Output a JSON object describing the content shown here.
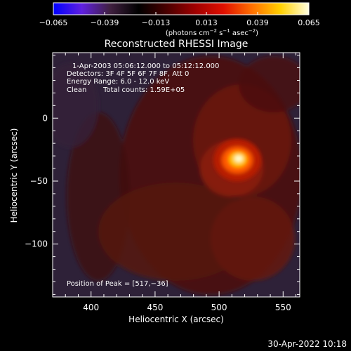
{
  "colorbar": {
    "ticks": [
      "−0.065",
      "−0.039",
      "−0.013",
      "0.013",
      "0.039",
      "0.065"
    ],
    "unit_main": "(photons cm",
    "unit_exp1": "−2",
    "unit_mid": " s",
    "unit_exp2": "−1",
    "unit_end": " asec",
    "unit_exp3": "−2",
    "unit_close": ")",
    "stops": [
      "#0000ff",
      "#6020e0",
      "#402040",
      "#000000",
      "#4a0000",
      "#a00000",
      "#e01000",
      "#ff7000",
      "#ffd000",
      "#ffffe0"
    ]
  },
  "chart_data": {
    "type": "heatmap",
    "title": "Reconstructed RHESSI Image",
    "xlabel": "Heliocentric X (arcsec)",
    "ylabel": "Heliocentric Y (arcsec)",
    "xlim": [
      370,
      563
    ],
    "ylim": [
      -142,
      52
    ],
    "xticks": [
      400,
      450,
      500,
      550
    ],
    "yticks": [
      0,
      -50,
      -100
    ],
    "xtick_labels": [
      "400",
      "450",
      "500",
      "550"
    ],
    "ytick_labels": [
      "0",
      "−50",
      "−100"
    ],
    "vmin": -0.065,
    "vmax": 0.065,
    "peak": [
      517,
      -36
    ],
    "peak_value": 0.065,
    "annotations": {
      "time_range": "1-Apr-2003 05:06:12.000 to 05:12:12.000",
      "detectors": "Detectors: 3F 4F 5F 6F 7F 8F, Att 0",
      "energy": "Energy Range: 6.0 - 12.0 keV",
      "method": "Clean",
      "counts": "Total counts: 1.59E+05",
      "peak_position": "Position of Peak = [517,−36]"
    }
  },
  "timestamp": "30-Apr-2022 10:18"
}
